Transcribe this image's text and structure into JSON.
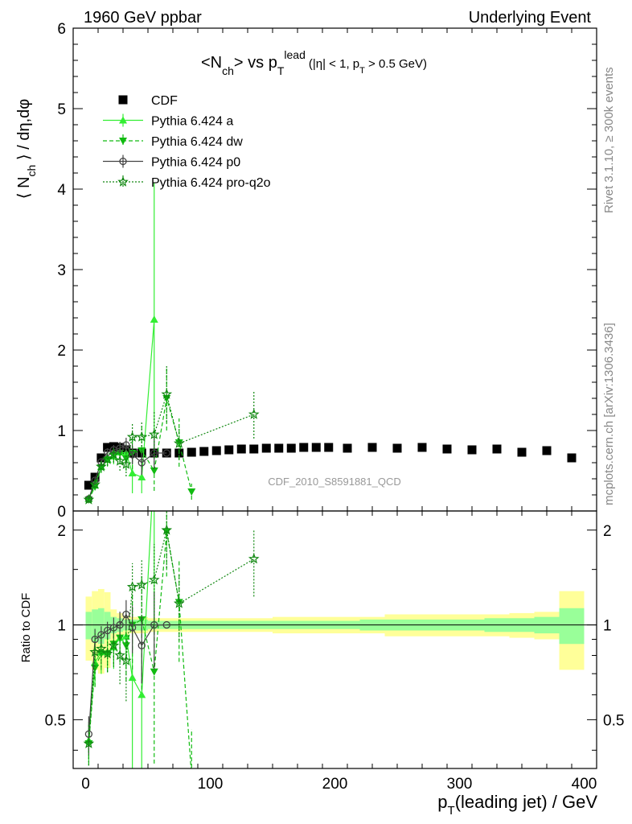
{
  "header": {
    "left": "1960 GeV ppbar",
    "right": "Underlying Event"
  },
  "plot_title": {
    "main": "<N",
    "main_sub": "ch",
    "main_mid": "> vs p",
    "main_sub2": "T",
    "main_sup": "lead",
    "cond_a": "(|η| < 1, p",
    "cond_sub": "T",
    "cond_b": " > 0.5 GeV)"
  },
  "ylabel_top": {
    "a": "⟨ N",
    "sub": "ch",
    "b": " ⟩ / dη,dφ"
  },
  "ylabel_bottom": "Ratio to CDF",
  "xlabel": {
    "a": "p",
    "sub": "T",
    "b": "(leading jet) / GeV"
  },
  "watermark": "CDF_2010_S8591881_QCD",
  "side_text": {
    "rivet": "Rivet 3.1.10, ≥ 300k events",
    "mcplots": "mcplots.cern.ch [arXiv:1306.3436]"
  },
  "colors": {
    "cdf": "#000000",
    "a": "#33ee33",
    "dw": "#11bb11",
    "p0": "#444444",
    "q2o": "#118811",
    "band_outer": "#ffff99",
    "band_inner": "#99ff99"
  },
  "chart_data": [
    {
      "type": "line",
      "panel": "main",
      "xlim": [
        -10,
        410
      ],
      "ylim": [
        0,
        6
      ],
      "xticks": [
        0,
        100,
        200,
        300,
        400
      ],
      "yticks": [
        0,
        1,
        2,
        3,
        4,
        5,
        6
      ],
      "legend_position": "top-left",
      "series": [
        {
          "name": "CDF",
          "marker": "square",
          "x": [
            2.5,
            7.5,
            12.5,
            17.5,
            22.5,
            27.5,
            32.5,
            37.5,
            45,
            55,
            65,
            75,
            85,
            95,
            105,
            115,
            125,
            135,
            145,
            155,
            165,
            175,
            185,
            195,
            210,
            230,
            250,
            270,
            290,
            310,
            330,
            350,
            370,
            390
          ],
          "y": [
            0.32,
            0.42,
            0.66,
            0.79,
            0.8,
            0.79,
            0.76,
            0.72,
            0.72,
            0.72,
            0.72,
            0.72,
            0.73,
            0.74,
            0.75,
            0.76,
            0.77,
            0.77,
            0.78,
            0.78,
            0.78,
            0.79,
            0.79,
            0.79,
            0.78,
            0.79,
            0.78,
            0.79,
            0.77,
            0.76,
            0.77,
            0.73,
            0.75,
            0.66
          ]
        },
        {
          "name": "Pythia 6.424 a",
          "marker": "triangle-up",
          "line": "solid",
          "x": [
            2.5,
            7.5,
            12.5,
            17.5,
            22.5,
            27.5,
            32.5,
            37.5,
            45,
            55
          ],
          "y": [
            0.15,
            0.32,
            0.55,
            0.64,
            0.68,
            0.73,
            0.72,
            0.47,
            0.42,
            2.38
          ],
          "err": [
            0.02,
            0.05,
            0.08,
            0.09,
            0.1,
            0.12,
            0.15,
            0.25,
            0.2,
            1.7
          ]
        },
        {
          "name": "Pythia 6.424 dw",
          "marker": "triangle-down",
          "line": "dashed",
          "x": [
            2.5,
            7.5,
            12.5,
            17.5,
            22.5,
            27.5,
            32.5,
            37.5,
            45,
            55,
            65,
            75,
            85
          ],
          "y": [
            0.14,
            0.3,
            0.54,
            0.64,
            0.7,
            0.72,
            0.65,
            0.72,
            0.75,
            0.5,
            1.4,
            0.85,
            0.24
          ],
          "err": [
            0.02,
            0.04,
            0.06,
            0.08,
            0.1,
            0.12,
            0.15,
            0.2,
            0.3,
            0.25,
            0.4,
            0.3,
            0.1
          ]
        },
        {
          "name": "Pythia 6.424 p0",
          "marker": "circle-open",
          "line": "solid",
          "x": [
            2.5,
            7.5,
            12.5,
            17.5,
            22.5,
            27.5,
            32.5,
            37.5,
            45,
            55,
            65
          ],
          "y": [
            0.15,
            0.38,
            0.61,
            0.73,
            0.76,
            0.78,
            0.82,
            0.7,
            0.6,
            0.72,
            0.72
          ],
          "err": [
            0.02,
            0.03,
            0.04,
            0.05,
            0.06,
            0.08,
            0.09,
            0.12,
            0.15,
            0.2,
            0.0
          ]
        },
        {
          "name": "Pythia 6.424 pro-q2o",
          "marker": "star-open",
          "line": "dotted",
          "x": [
            2.5,
            7.5,
            12.5,
            17.5,
            22.5,
            27.5,
            32.5,
            37.5,
            45,
            55,
            65,
            75,
            135
          ],
          "y": [
            0.14,
            0.33,
            0.55,
            0.64,
            0.7,
            0.62,
            0.58,
            0.92,
            0.92,
            0.95,
            1.45,
            0.84,
            1.2
          ],
          "err": [
            0.02,
            0.05,
            0.07,
            0.08,
            0.1,
            0.12,
            0.15,
            0.18,
            0.2,
            0.3,
            0.35,
            0.2,
            0.3
          ]
        }
      ]
    },
    {
      "type": "line",
      "panel": "ratio",
      "ylabel": "Ratio to CDF",
      "xlabel": "pT(leading jet) / GeV",
      "xlim": [
        -10,
        410
      ],
      "ylim": [
        0.35,
        2.3
      ],
      "log_y": true,
      "yticks": [
        0.5,
        1,
        2
      ],
      "bands": {
        "x_edges": [
          0,
          5,
          10,
          15,
          20,
          25,
          30,
          35,
          40,
          50,
          60,
          70,
          80,
          90,
          100,
          110,
          120,
          130,
          140,
          150,
          160,
          170,
          180,
          190,
          200,
          220,
          240,
          260,
          280,
          300,
          320,
          340,
          360,
          380,
          400
        ],
        "outer": [
          0.23,
          0.28,
          0.3,
          0.27,
          0.12,
          0.09,
          0.07,
          0.06,
          0.06,
          0.05,
          0.05,
          0.05,
          0.05,
          0.05,
          0.05,
          0.05,
          0.05,
          0.05,
          0.05,
          0.06,
          0.06,
          0.06,
          0.06,
          0.06,
          0.06,
          0.06,
          0.08,
          0.08,
          0.08,
          0.08,
          0.08,
          0.09,
          0.1,
          0.28
        ],
        "inner": [
          0.1,
          0.12,
          0.13,
          0.1,
          0.06,
          0.05,
          0.04,
          0.04,
          0.04,
          0.03,
          0.03,
          0.03,
          0.03,
          0.03,
          0.03,
          0.03,
          0.03,
          0.03,
          0.03,
          0.03,
          0.03,
          0.03,
          0.03,
          0.03,
          0.03,
          0.04,
          0.04,
          0.04,
          0.04,
          0.04,
          0.05,
          0.05,
          0.06,
          0.13
        ]
      },
      "series": [
        {
          "name": "Pythia 6.424 a",
          "x": [
            2.5,
            7.5,
            12.5,
            17.5,
            22.5,
            27.5,
            32.5,
            37.5,
            45,
            55
          ],
          "y": [
            0.43,
            0.76,
            0.82,
            0.82,
            0.85,
            0.91,
            0.92,
            0.68,
            0.6,
            3.3
          ]
        },
        {
          "name": "Pythia 6.424 dw",
          "x": [
            2.5,
            7.5,
            12.5,
            17.5,
            22.5,
            27.5,
            32.5,
            37.5,
            45,
            55,
            65,
            75,
            85
          ],
          "y": [
            0.42,
            0.73,
            0.81,
            0.81,
            0.87,
            0.91,
            0.86,
            1.0,
            1.04,
            0.71,
            1.98,
            1.18,
            0.33
          ]
        },
        {
          "name": "Pythia 6.424 p0",
          "x": [
            2.5,
            7.5,
            12.5,
            17.5,
            22.5,
            27.5,
            32.5,
            37.5,
            45,
            55,
            65
          ],
          "y": [
            0.45,
            0.9,
            0.93,
            0.96,
            0.98,
            1.0,
            1.08,
            0.98,
            0.86,
            1.0,
            1.0
          ]
        },
        {
          "name": "Pythia 6.424 pro-q2o",
          "x": [
            2.5,
            7.5,
            12.5,
            17.5,
            22.5,
            27.5,
            32.5,
            37.5,
            45,
            55,
            65,
            75,
            135
          ],
          "y": [
            0.42,
            0.82,
            0.84,
            0.81,
            0.86,
            0.8,
            0.77,
            1.32,
            1.34,
            1.39,
            2.0,
            1.17,
            1.62
          ]
        }
      ]
    }
  ]
}
